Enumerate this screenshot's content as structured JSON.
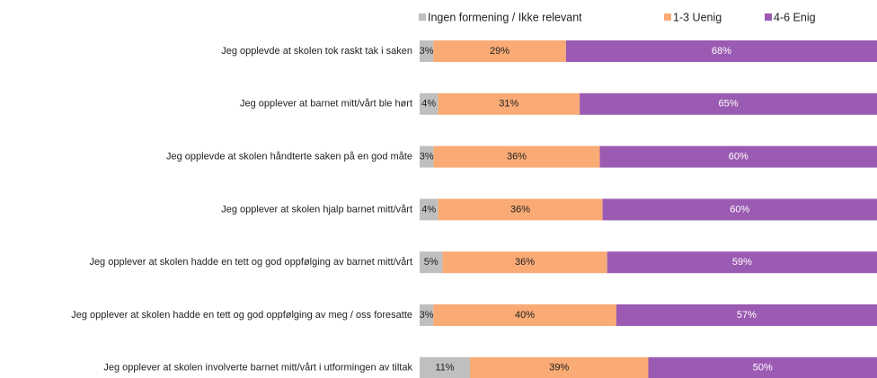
{
  "chart_data": {
    "type": "stacked-bar-horizontal",
    "categories": [
      "Jeg opplevde at skolen tok raskt tak i saken",
      "Jeg opplever at barnet mitt/vårt ble hørt",
      "Jeg opplevde at skolen håndterte saken på en god måte",
      "Jeg opplever at skolen hjalp barnet mitt/vårt",
      "Jeg opplever at skolen hadde en tett og god oppfølging av barnet mitt/vårt",
      "Jeg opplever at skolen hadde en tett og god oppfølging av meg / oss foresatte",
      "Jeg opplever at skolen involverte barnet mitt/vårt i utformingen av tiltak"
    ],
    "series": [
      {
        "name": "Ingen formening / Ikke relevant",
        "color": "#bfbfbf",
        "label_color": "#222222",
        "values": [
          3,
          4,
          3,
          4,
          5,
          3,
          11
        ],
        "value_labels": [
          "3%",
          "4%",
          "3%",
          "4%",
          "5%",
          "3%",
          "11%"
        ]
      },
      {
        "name": "1-3 Uenig",
        "color": "#f9aa75",
        "label_color": "#222222",
        "values": [
          29,
          31,
          36,
          36,
          36,
          40,
          39
        ],
        "value_labels": [
          "29%",
          "31%",
          "36%",
          "36%",
          "36%",
          "40%",
          "39%"
        ]
      },
      {
        "name": "4-6 Enig",
        "color": "#9b5bb2",
        "label_color": "#ffffff",
        "values": [
          68,
          65,
          60,
          60,
          59,
          57,
          50
        ],
        "value_labels": [
          "68%",
          "65%",
          "60%",
          "60%",
          "59%",
          "57%",
          "50%"
        ]
      }
    ],
    "legend": "top"
  }
}
